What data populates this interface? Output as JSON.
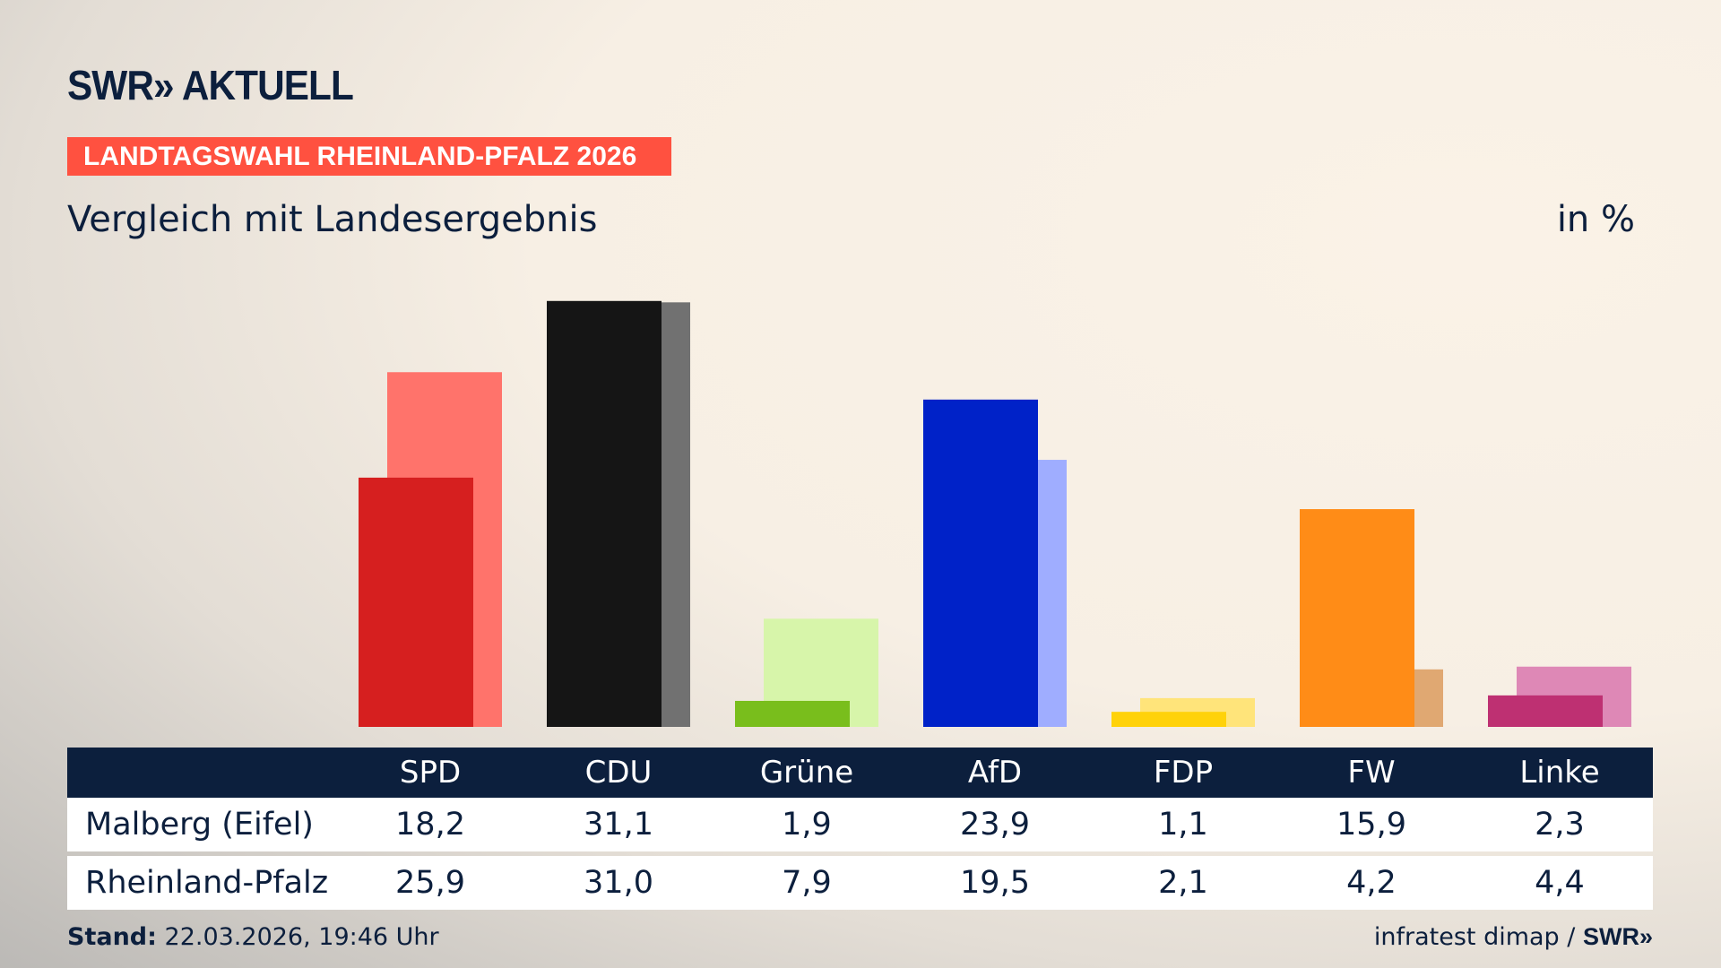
{
  "header": {
    "logo": "SWR» AKTUELL",
    "banner": "LANDTAGSWAHL RHEINLAND-PFALZ 2026",
    "subtitle": "Vergleich mit Landesergebnis",
    "unit": "in %"
  },
  "chart_data": {
    "type": "bar",
    "categories": [
      "SPD",
      "CDU",
      "Grüne",
      "AfD",
      "FDP",
      "FW",
      "Linke"
    ],
    "series": [
      {
        "name": "Malberg (Eifel)",
        "values": [
          18.2,
          31.1,
          1.9,
          23.9,
          1.1,
          15.9,
          2.3
        ],
        "display": [
          "18,2",
          "31,1",
          "1,9",
          "23,9",
          "1,1",
          "15,9",
          "2,3"
        ],
        "colors": [
          "#d61f1f",
          "#151515",
          "#79be1c",
          "#0022c8",
          "#ffd20a",
          "#ff8c17",
          "#be3072"
        ]
      },
      {
        "name": "Rheinland-Pfalz",
        "values": [
          25.9,
          31.0,
          7.9,
          19.5,
          2.1,
          4.2,
          4.4
        ],
        "display": [
          "25,9",
          "31,0",
          "7,9",
          "19,5",
          "2,1",
          "4,2",
          "4,4"
        ],
        "colors": [
          "#ff736b",
          "#717171",
          "#d7f5aa",
          "#9fadff",
          "#ffe47a",
          "#e0a872",
          "#de88b6"
        ]
      }
    ],
    "ylim": [
      0,
      31.1
    ],
    "grid": false,
    "legend": "table-below"
  },
  "footer": {
    "stand_label": "Stand:",
    "stand_value": "22.03.2026, 19:46 Uhr",
    "source": "infratest dimap /",
    "source_logo": "SWR»"
  }
}
